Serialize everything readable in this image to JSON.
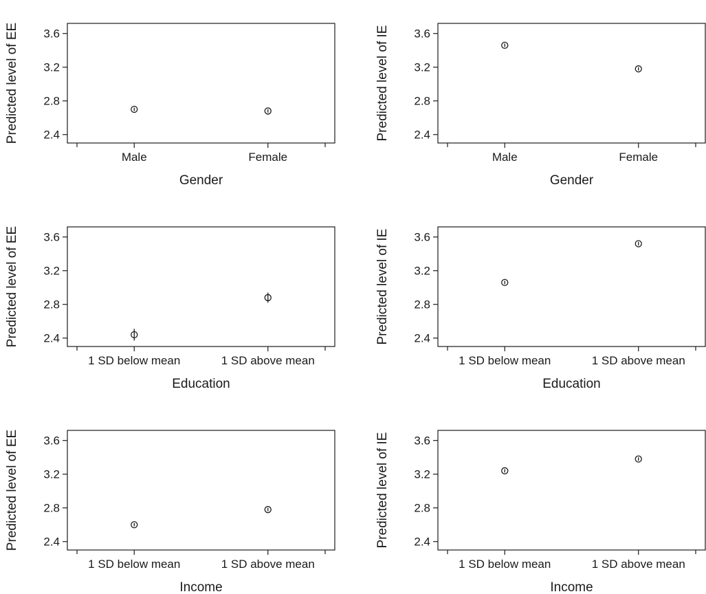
{
  "chart_data": [
    {
      "type": "scatter",
      "xlabel": "Gender",
      "ylabel": "Predicted level of EE",
      "categories": [
        "Male",
        "Female"
      ],
      "yticks": [
        "2.4",
        "2.8",
        "3.2",
        "3.6"
      ],
      "ylim": [
        2.3,
        3.72
      ],
      "values": [
        2.7,
        2.68
      ],
      "ci_low": [
        2.68,
        2.66
      ],
      "ci_high": [
        2.72,
        2.7
      ]
    },
    {
      "type": "scatter",
      "xlabel": "Gender",
      "ylabel": "Predicted level of IE",
      "categories": [
        "Male",
        "Female"
      ],
      "yticks": [
        "2.4",
        "2.8",
        "3.2",
        "3.6"
      ],
      "ylim": [
        2.3,
        3.72
      ],
      "values": [
        3.46,
        3.18
      ],
      "ci_low": [
        3.44,
        3.16
      ],
      "ci_high": [
        3.48,
        3.2
      ]
    },
    {
      "type": "scatter",
      "xlabel": "Education",
      "ylabel": "Predicted level of EE",
      "categories": [
        "1 SD below mean",
        "1 SD above mean"
      ],
      "yticks": [
        "2.4",
        "2.8",
        "3.2",
        "3.6"
      ],
      "ylim": [
        2.3,
        3.72
      ],
      "values": [
        2.44,
        2.88
      ],
      "ci_low": [
        2.37,
        2.82
      ],
      "ci_high": [
        2.51,
        2.94
      ]
    },
    {
      "type": "scatter",
      "xlabel": "Education",
      "ylabel": "Predicted level of IE",
      "categories": [
        "1 SD below mean",
        "1 SD above mean"
      ],
      "yticks": [
        "2.4",
        "2.8",
        "3.2",
        "3.6"
      ],
      "ylim": [
        2.3,
        3.72
      ],
      "values": [
        3.06,
        3.52
      ],
      "ci_low": [
        3.04,
        3.5
      ],
      "ci_high": [
        3.08,
        3.54
      ]
    },
    {
      "type": "scatter",
      "xlabel": "Income",
      "ylabel": "Predicted level of EE",
      "categories": [
        "1 SD below mean",
        "1 SD above mean"
      ],
      "yticks": [
        "2.4",
        "2.8",
        "3.2",
        "3.6"
      ],
      "ylim": [
        2.3,
        3.72
      ],
      "values": [
        2.6,
        2.78
      ],
      "ci_low": [
        2.58,
        2.76
      ],
      "ci_high": [
        2.62,
        2.8
      ]
    },
    {
      "type": "scatter",
      "xlabel": "Income",
      "ylabel": "Predicted level of IE",
      "categories": [
        "1 SD below mean",
        "1 SD above mean"
      ],
      "yticks": [
        "2.4",
        "2.8",
        "3.2",
        "3.6"
      ],
      "ylim": [
        2.3,
        3.72
      ],
      "values": [
        3.24,
        3.38
      ],
      "ci_low": [
        3.22,
        3.36
      ],
      "ci_high": [
        3.26,
        3.4
      ]
    }
  ]
}
